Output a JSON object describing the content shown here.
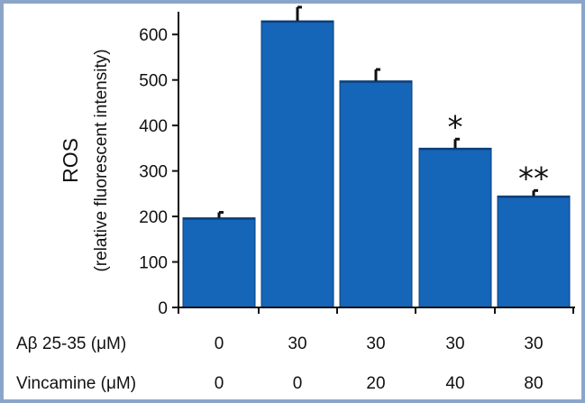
{
  "chart_data": {
    "type": "bar",
    "title": "",
    "ylabel": "ROS",
    "ylabel_sub": "(relative fluorescent intensity)",
    "ylim": [
      0,
      650
    ],
    "yticks": [
      0,
      100,
      200,
      300,
      400,
      500,
      600
    ],
    "values": [
      197,
      630,
      498,
      350,
      245
    ],
    "errors": [
      12,
      30,
      25,
      20,
      12
    ],
    "significance": [
      "",
      "",
      "",
      "*",
      "**"
    ],
    "rows": [
      {
        "label": "Aβ 25-35 (μM)",
        "values": [
          "0",
          "30",
          "30",
          "30",
          "30"
        ]
      },
      {
        "label": "Vincamine (μM)",
        "values": [
          "0",
          "0",
          "20",
          "40",
          "80"
        ]
      }
    ],
    "colors": {
      "bar": "#1565b8",
      "bar_edge": "#0b3f7a",
      "error": "#111111",
      "axis": "#111111",
      "frame": "#8ba5c8"
    }
  }
}
